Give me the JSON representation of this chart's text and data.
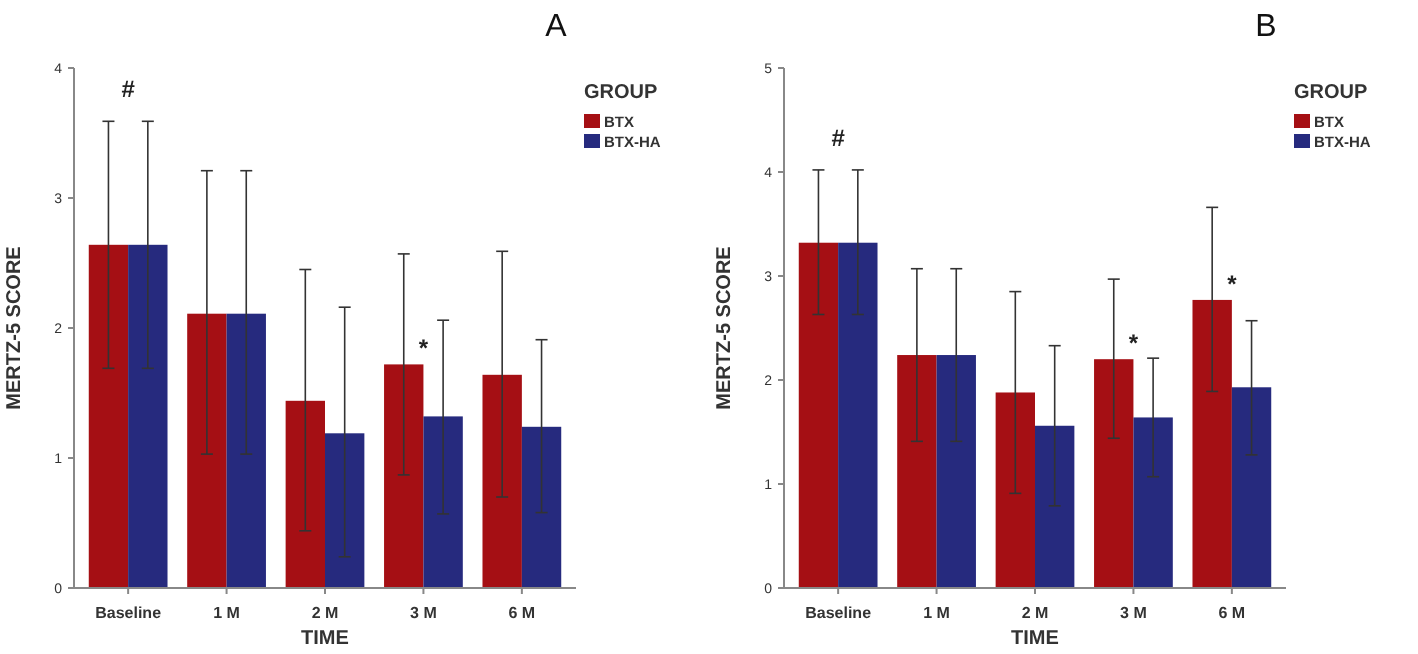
{
  "chart_data": [
    {
      "type": "bar",
      "title": "A",
      "xlabel": "TIME",
      "ylabel": "MERTZ-5 SCORE",
      "legend_title": "GROUP",
      "legend": "top right",
      "categories": [
        "Baseline",
        "1 M",
        "2 M",
        "3 M",
        "6 M"
      ],
      "series": [
        {
          "name": "BTX",
          "color": "#a50f14",
          "values": [
            2.64,
            2.11,
            1.44,
            1.72,
            1.64
          ],
          "errors": [
            [
              1.69,
              3.59
            ],
            [
              1.03,
              3.21
            ],
            [
              0.44,
              2.45
            ],
            [
              0.87,
              2.57
            ],
            [
              0.7,
              2.59
            ]
          ]
        },
        {
          "name": "BTX-HA",
          "color": "#262a7e",
          "values": [
            2.64,
            2.11,
            1.19,
            1.32,
            1.24
          ],
          "errors": [
            [
              1.69,
              3.59
            ],
            [
              1.03,
              3.21
            ],
            [
              0.24,
              2.16
            ],
            [
              0.57,
              2.06
            ],
            [
              0.58,
              1.91
            ]
          ]
        }
      ],
      "ylim": [
        0,
        4
      ],
      "yticks": [
        0,
        1,
        2,
        3,
        4
      ],
      "grid": false,
      "annotations": [
        "#",
        {
          "text": "*",
          "x": "3 M",
          "y": 1.72
        }
      ]
    },
    {
      "type": "bar",
      "title": "B",
      "xlabel": "TIME",
      "ylabel": "MERTZ-5 SCORE",
      "legend_title": "GROUP",
      "legend": "top right",
      "categories": [
        "Baseline",
        "1 M",
        "2 M",
        "3 M",
        "6 M"
      ],
      "series": [
        {
          "name": "BTX",
          "color": "#a50f14",
          "values": [
            3.32,
            2.24,
            1.88,
            2.2,
            2.77
          ],
          "errors": [
            [
              2.63,
              4.02
            ],
            [
              1.41,
              3.07
            ],
            [
              0.91,
              2.85
            ],
            [
              1.44,
              2.97
            ],
            [
              1.89,
              3.66
            ]
          ]
        },
        {
          "name": "BTX-HA",
          "color": "#262a7e",
          "values": [
            3.32,
            2.24,
            1.56,
            1.64,
            1.93
          ],
          "errors": [
            [
              2.63,
              4.02
            ],
            [
              1.41,
              3.07
            ],
            [
              0.79,
              2.33
            ],
            [
              1.07,
              2.21
            ],
            [
              1.28,
              2.57
            ]
          ]
        }
      ],
      "ylim": [
        0,
        5
      ],
      "yticks": [
        0,
        1,
        2,
        3,
        4,
        5
      ],
      "grid": false,
      "annotations": [
        "#",
        {
          "text": "*",
          "x": "3 M",
          "y": 2.2
        },
        {
          "text": "*",
          "x": "6 M",
          "y": 2.77
        }
      ]
    }
  ]
}
